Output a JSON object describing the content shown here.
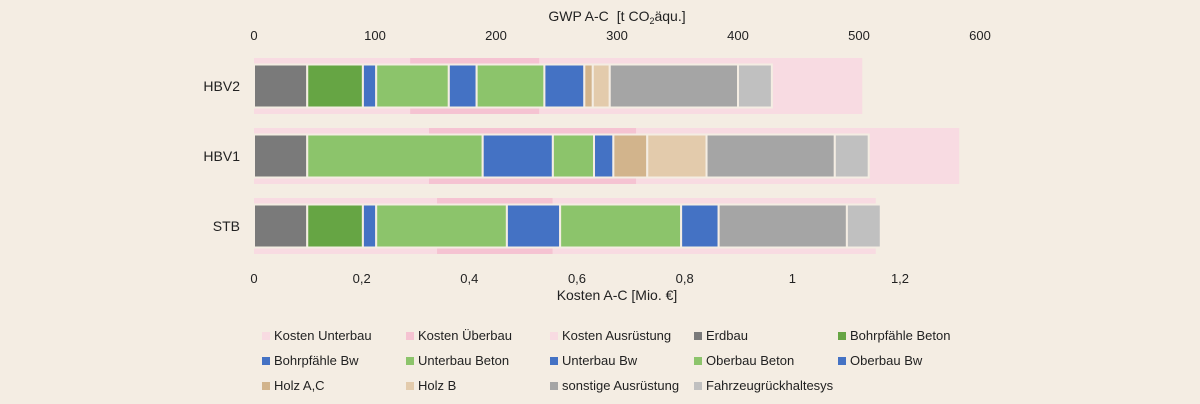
{
  "chart_data": {
    "type": "bar",
    "orientation": "horizontal",
    "stacked": true,
    "top_axis": {
      "label_prefix": "GWP A-C",
      "label_unit_before": "[t CO",
      "label_unit_sub": "2",
      "label_unit_after": "äqu.]",
      "ticks": [
        "0",
        "100",
        "200",
        "300",
        "400",
        "500",
        "600"
      ],
      "range": [
        0,
        600
      ]
    },
    "bottom_axis": {
      "label": "Kosten A-C [Mio. €]",
      "ticks": [
        "0",
        "0,2",
        "0,4",
        "0,6",
        "0,8",
        "1",
        "1,2"
      ],
      "range": [
        0,
        1.35
      ]
    },
    "categories": [
      "HBV2",
      "HBV1",
      "STB"
    ],
    "cost_series": [
      {
        "name": "Kosten Unterbau",
        "color": "#f8dbe2",
        "values": [
          0.29,
          0.325,
          0.34
        ]
      },
      {
        "name": "Kosten Überbau",
        "color": "#f5c3d2",
        "values": [
          0.24,
          0.385,
          0.215
        ]
      },
      {
        "name": "Kosten Ausrüstung",
        "color": "#f8dbe2",
        "values": [
          0.6,
          0.6,
          0.6
        ]
      }
    ],
    "gwp_series": [
      {
        "name": "Erdbau",
        "color": "#7a7a7a",
        "values": [
          44,
          44,
          44
        ]
      },
      {
        "name": "Bohrpfähle Beton",
        "color": "#66a544",
        "values": [
          46,
          0,
          46
        ]
      },
      {
        "name": "Bohrpfähle Bw",
        "color": "#4472c4",
        "values": [
          11,
          0,
          11
        ]
      },
      {
        "name": "Unterbau Beton",
        "color": "#8cc46b",
        "values": [
          60,
          145,
          108
        ]
      },
      {
        "name": "Unterbau Bw",
        "color": "#4472c4",
        "values": [
          23,
          58,
          44
        ]
      },
      {
        "name": "Oberbau Beton",
        "color": "#8cc46b",
        "values": [
          56,
          34,
          100
        ]
      },
      {
        "name": "Oberbau Bw",
        "color": "#4472c4",
        "values": [
          33,
          16,
          31
        ]
      },
      {
        "name": "Holz A,C",
        "color": "#d2b48c",
        "values": [
          7,
          28,
          0
        ]
      },
      {
        "name": "Holz B",
        "color": "#e3cbac",
        "values": [
          14,
          49,
          0
        ]
      },
      {
        "name": "sonstige Ausrüstung",
        "color": "#a5a5a5",
        "values": [
          106,
          106,
          106
        ]
      },
      {
        "name": "Fahrzeugrückhaltesys",
        "color": "#c0c0c0",
        "values": [
          28,
          28,
          28
        ]
      }
    ]
  }
}
